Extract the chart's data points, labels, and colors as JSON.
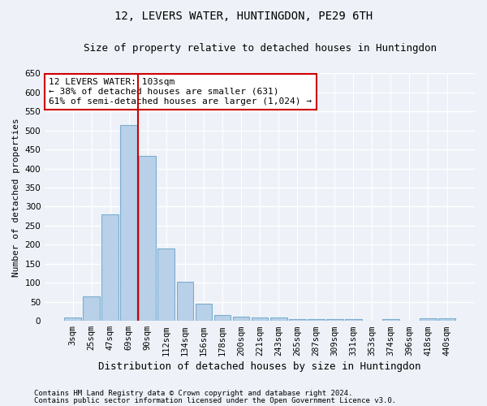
{
  "title": "12, LEVERS WATER, HUNTINGDON, PE29 6TH",
  "subtitle": "Size of property relative to detached houses in Huntingdon",
  "xlabel": "Distribution of detached houses by size in Huntingdon",
  "ylabel": "Number of detached properties",
  "categories": [
    "3sqm",
    "25sqm",
    "47sqm",
    "69sqm",
    "90sqm",
    "112sqm",
    "134sqm",
    "156sqm",
    "178sqm",
    "200sqm",
    "221sqm",
    "243sqm",
    "265sqm",
    "287sqm",
    "309sqm",
    "331sqm",
    "353sqm",
    "374sqm",
    "396sqm",
    "418sqm",
    "440sqm"
  ],
  "values": [
    10,
    65,
    280,
    515,
    433,
    190,
    102,
    46,
    15,
    12,
    10,
    8,
    5,
    5,
    5,
    5,
    0,
    5,
    0,
    7,
    7
  ],
  "bar_color": "#b8d0e8",
  "bar_edge_color": "#7aadd0",
  "vline_x": 3.5,
  "vline_color": "#cc0000",
  "annotation_text": "12 LEVERS WATER: 103sqm\n← 38% of detached houses are smaller (631)\n61% of semi-detached houses are larger (1,024) →",
  "annotation_box_facecolor": "#ffffff",
  "annotation_border_color": "#cc0000",
  "ylim": [
    0,
    650
  ],
  "yticks": [
    0,
    50,
    100,
    150,
    200,
    250,
    300,
    350,
    400,
    450,
    500,
    550,
    600,
    650
  ],
  "footer_line1": "Contains HM Land Registry data © Crown copyright and database right 2024.",
  "footer_line2": "Contains public sector information licensed under the Open Government Licence v3.0.",
  "background_color": "#eef2f8",
  "grid_color": "#ffffff",
  "title_fontsize": 10,
  "subtitle_fontsize": 9,
  "ylabel_fontsize": 8,
  "xlabel_fontsize": 9,
  "tick_fontsize": 7.5,
  "footer_fontsize": 6.5
}
